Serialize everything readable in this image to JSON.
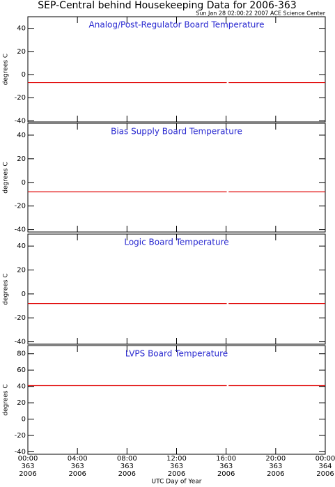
{
  "header": {
    "title": "SEP-Central behind Housekeeping Data for 2006-363",
    "subtitle": "Sun Jan 28 02:00:22 2007 ACE Science Center"
  },
  "chart_data": [
    {
      "type": "line",
      "title": "Analog/Post-Regulator Board Temperature",
      "ylabel": "degrees C",
      "ylim": [
        -41,
        50
      ],
      "yticks": [
        -40,
        -20,
        0,
        20,
        40
      ],
      "series": [
        {
          "color": "#e00000",
          "x": [
            0,
            16.05,
            16.1,
            16.2,
            24
          ],
          "values": [
            -7,
            -7,
            null,
            -7,
            -7
          ]
        }
      ]
    },
    {
      "type": "line",
      "title": "Bias Supply Board Temperature",
      "ylabel": "degrees C",
      "ylim": [
        -42,
        50
      ],
      "yticks": [
        -40,
        -20,
        0,
        20,
        40
      ],
      "series": [
        {
          "color": "#e00000",
          "x": [
            0,
            16.05,
            16.1,
            16.2,
            24
          ],
          "values": [
            -8,
            -8,
            null,
            -8,
            -8
          ]
        }
      ]
    },
    {
      "type": "line",
      "title": "Logic Board Temperature",
      "ylabel": "degrees C",
      "ylim": [
        -42,
        50
      ],
      "yticks": [
        -40,
        -20,
        0,
        20,
        40
      ],
      "series": [
        {
          "color": "#e00000",
          "x": [
            0,
            16.05,
            16.1,
            16.2,
            24
          ],
          "values": [
            -8,
            -8,
            null,
            -8,
            -8
          ]
        }
      ]
    },
    {
      "type": "line",
      "title": "LVPS Board Temperature",
      "ylabel": "degrees C",
      "ylim": [
        -43,
        90
      ],
      "yticks": [
        -40,
        -20,
        0,
        20,
        40,
        60,
        80
      ],
      "series": [
        {
          "color": "#e00000",
          "x": [
            0,
            16.05,
            16.1,
            16.2,
            24
          ],
          "values": [
            41,
            41,
            null,
            41,
            41
          ]
        }
      ],
      "xlabel": "UTC Day of Year",
      "xlim": [
        0,
        24
      ],
      "xticks": [
        {
          "value": 0,
          "label": "00:00"
        },
        {
          "value": 4,
          "label": "04:00"
        },
        {
          "value": 8,
          "label": "08:00"
        },
        {
          "value": 12,
          "label": "12:00"
        },
        {
          "value": 16,
          "label": "16:00"
        },
        {
          "value": 20,
          "label": "20:00"
        },
        {
          "value": 24,
          "label": "00:00"
        }
      ],
      "xtick_days": [
        "363",
        "363",
        "363",
        "363",
        "363",
        "363",
        "364"
      ],
      "xtick_years": [
        "2006",
        "2006",
        "2006",
        "2006",
        "2006",
        "2006",
        "2006"
      ]
    }
  ]
}
